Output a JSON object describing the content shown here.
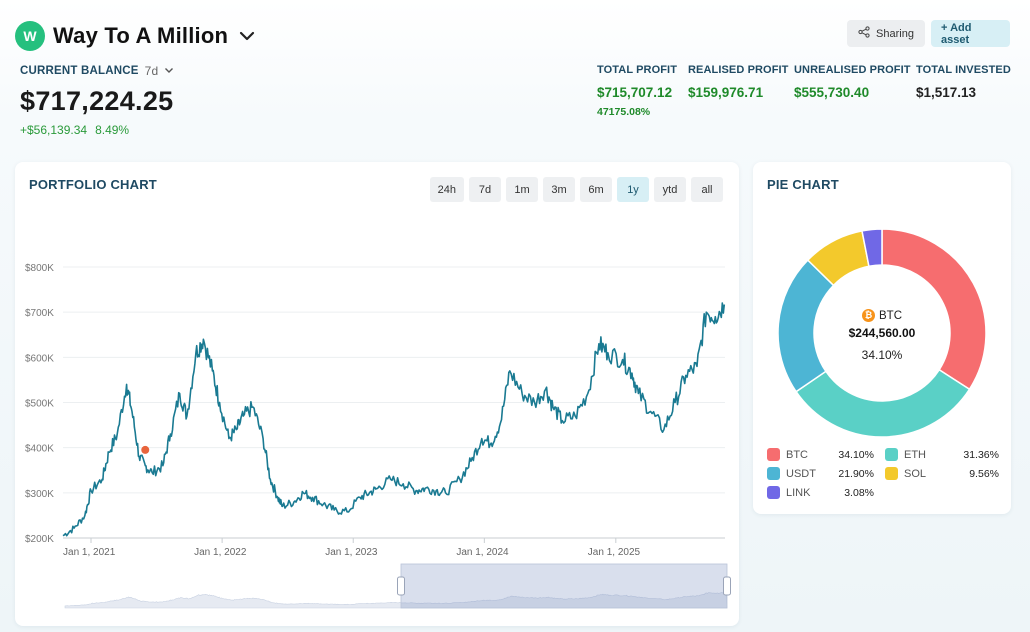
{
  "portfolio": {
    "avatar_letter": "W",
    "name": "Way To A Million"
  },
  "actions": {
    "sharing_label": "Sharing",
    "add_asset_label": "+ Add asset"
  },
  "balance": {
    "label": "CURRENT BALANCE",
    "period": "7d",
    "value": "$717,224.25",
    "change_amount": "+$56,139.34",
    "change_percent": "8.49%"
  },
  "stats": {
    "total_profit": {
      "label": "TOTAL PROFIT",
      "value": "$715,707.12",
      "sub": "47175.08%"
    },
    "realised_profit": {
      "label": "REALISED PROFIT",
      "value": "$159,976.71"
    },
    "unrealised_profit": {
      "label": "UNREALISED PROFIT",
      "value": "$555,730.40"
    },
    "total_invested": {
      "label": "TOTAL INVESTED",
      "value": "$1,517.13"
    }
  },
  "portfolio_chart": {
    "title": "PORTFOLIO CHART",
    "ranges": [
      "24h",
      "7d",
      "1m",
      "3m",
      "6m",
      "1y",
      "ytd",
      "all"
    ],
    "active_range": "1y"
  },
  "pie_chart": {
    "title": "PIE CHART",
    "center": {
      "asset": "BTC",
      "value": "$244,560.00",
      "percent": "34.10%"
    }
  },
  "colors": {
    "line": "#1a7a92",
    "marker": "#e8643c",
    "btc": "#f66d6f",
    "eth": "#5ad0c6",
    "usdt": "#4db5d4",
    "sol": "#f3c92c",
    "link": "#7068e6"
  },
  "chart_data": [
    {
      "type": "line",
      "title": "PORTFOLIO CHART",
      "xlabel": "",
      "ylabel": "",
      "x_ticks": [
        "Jan 1, 2021",
        "Jan 1, 2022",
        "Jan 1, 2023",
        "Jan 1, 2024",
        "Jan 1, 2025"
      ],
      "y_ticks": [
        "$200K",
        "$300K",
        "$400K",
        "$500K",
        "$600K",
        "$700K",
        "$800K"
      ],
      "ylim": [
        200000,
        800000
      ],
      "xlim": [
        "2020-10-15",
        "2025-11-01"
      ],
      "grid": true,
      "series": [
        {
          "x": [
            "2020-10-15",
            "2020-11-15",
            "2020-12-15",
            "2021-01-01",
            "2021-02-01",
            "2021-02-20",
            "2021-03-15",
            "2021-04-10",
            "2021-04-25",
            "2021-05-15",
            "2021-06-01",
            "2021-06-20",
            "2021-07-20",
            "2021-08-10",
            "2021-09-05",
            "2021-09-25",
            "2021-10-20",
            "2021-11-10",
            "2021-12-05",
            "2021-12-25",
            "2022-01-20",
            "2022-02-10",
            "2022-03-01",
            "2022-03-28",
            "2022-04-25",
            "2022-05-15",
            "2022-06-05",
            "2022-06-18",
            "2022-07-20",
            "2022-08-15",
            "2022-09-10",
            "2022-10-10",
            "2022-11-09",
            "2022-12-15",
            "2023-01-20",
            "2023-02-15",
            "2023-03-10",
            "2023-04-15",
            "2023-05-20",
            "2023-06-25",
            "2023-07-20",
            "2023-08-20",
            "2023-09-15",
            "2023-10-25",
            "2023-11-25",
            "2023-12-25",
            "2024-01-20",
            "2024-02-15",
            "2024-03-12",
            "2024-04-15",
            "2024-05-20",
            "2024-06-20",
            "2024-07-10",
            "2024-08-05",
            "2024-09-10",
            "2024-10-15",
            "2024-11-15",
            "2024-12-10",
            "2025-01-20",
            "2025-02-15",
            "2025-03-05",
            "2025-04-08",
            "2025-05-15",
            "2025-06-15",
            "2025-07-15",
            "2025-08-15",
            "2025-09-10",
            "2025-10-05",
            "2025-10-30"
          ],
          "y": [
            205000,
            222000,
            250000,
            305000,
            330000,
            390000,
            430000,
            540000,
            480000,
            380000,
            360000,
            345000,
            360000,
            430000,
            520000,
            470000,
            610000,
            640000,
            570000,
            500000,
            420000,
            440000,
            470000,
            490000,
            420000,
            330000,
            290000,
            270000,
            280000,
            300000,
            290000,
            275000,
            262000,
            258000,
            290000,
            300000,
            310000,
            330000,
            320000,
            305000,
            310000,
            305000,
            300000,
            330000,
            370000,
            420000,
            410000,
            455000,
            570000,
            520000,
            500000,
            530000,
            490000,
            460000,
            470000,
            520000,
            630000,
            610000,
            595000,
            565000,
            520000,
            480000,
            440000,
            500000,
            560000,
            580000,
            700000,
            690000,
            717000
          ]
        }
      ],
      "marker_point": {
        "x": "2021-06-01",
        "y": 395000
      }
    },
    {
      "type": "pie",
      "title": "PIE CHART",
      "categories": [
        "BTC",
        "ETH",
        "USDT",
        "SOL",
        "LINK"
      ],
      "values": [
        34.1,
        31.36,
        21.9,
        9.56,
        3.08
      ],
      "labels": [
        "34.10%",
        "31.36%",
        "21.90%",
        "9.56%",
        "3.08%"
      ]
    }
  ]
}
